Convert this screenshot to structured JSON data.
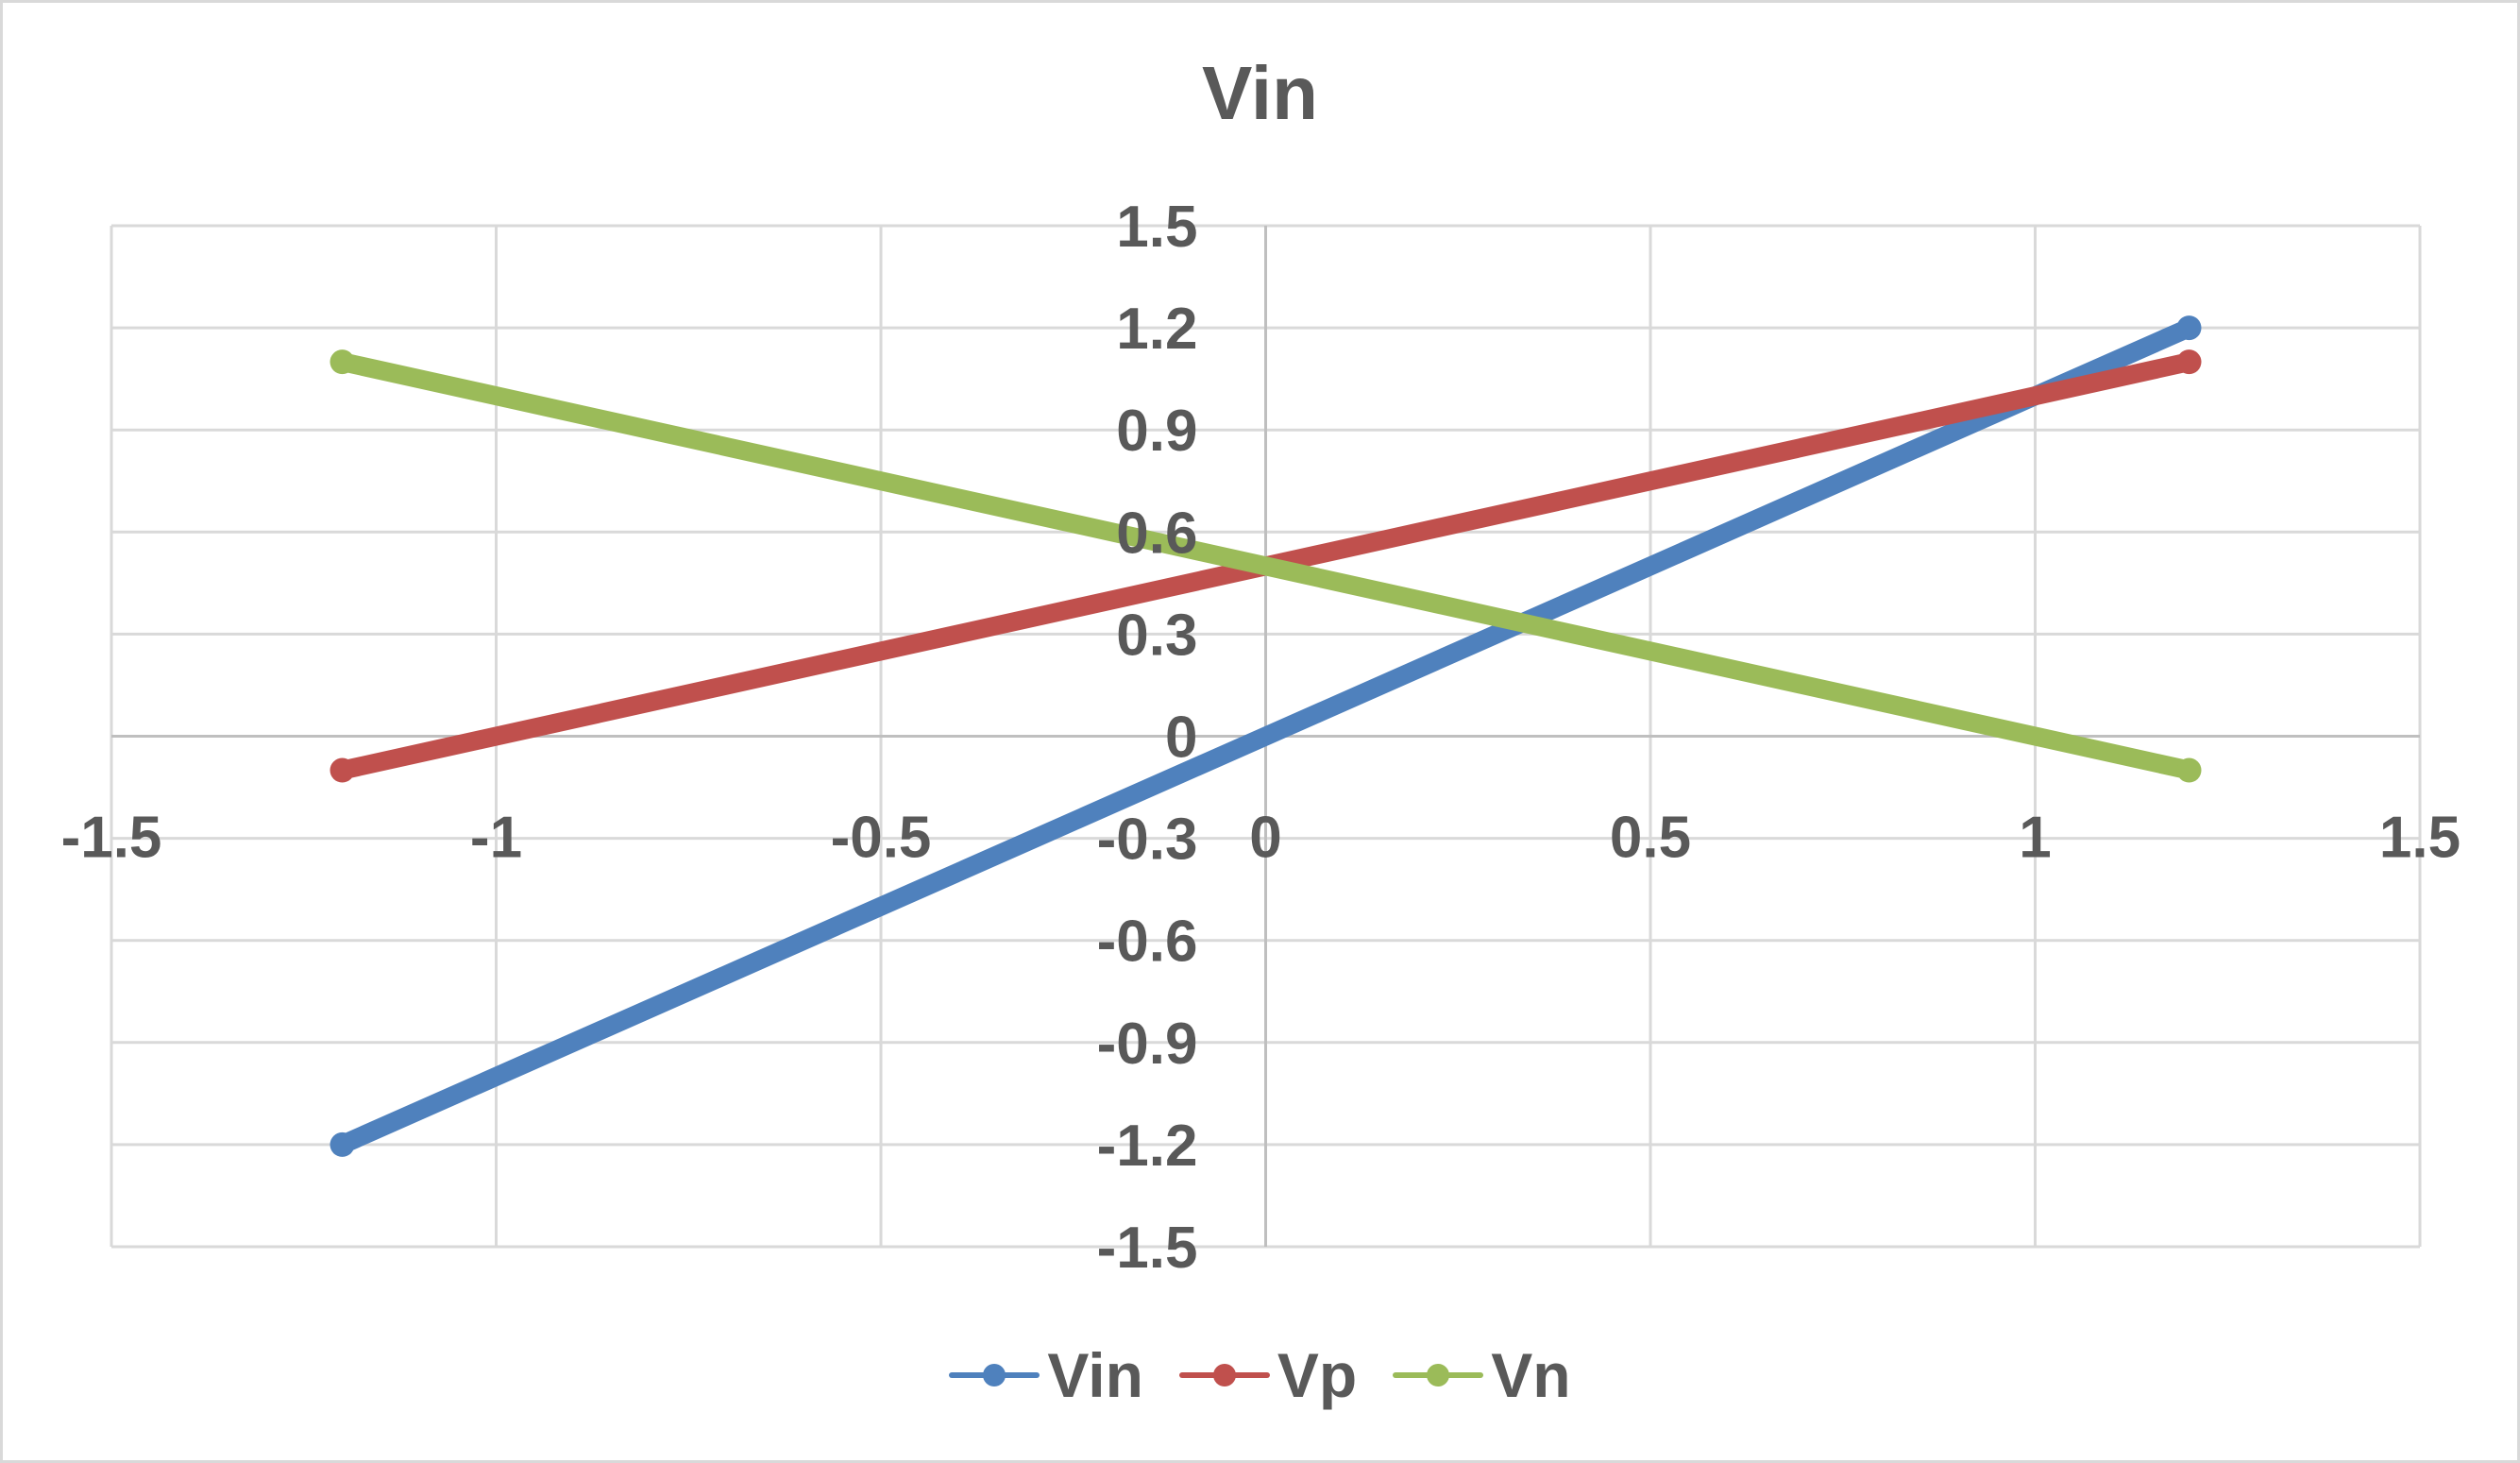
{
  "chart_data": {
    "type": "line",
    "title": "Vin",
    "xlabel": "",
    "ylabel": "",
    "xlim": [
      -1.5,
      1.5
    ],
    "ylim": [
      -1.5,
      1.5
    ],
    "x_ticks": [
      -1.5,
      -1,
      -0.5,
      0,
      0.5,
      1,
      1.5
    ],
    "x_tick_labels": [
      "-1.5",
      "-1",
      "-0.5",
      "0",
      "0.5",
      "1",
      "1.5"
    ],
    "y_ticks": [
      1.5,
      1.2,
      0.9,
      0.6,
      0.3,
      0,
      -0.3,
      -0.6,
      -0.9,
      -1.2,
      -1.5
    ],
    "y_tick_labels": [
      "1.5",
      "1.2",
      "0.9",
      "0.6",
      "0.3",
      "0",
      "-0.3",
      "-0.6",
      "-0.9",
      "-1.2",
      "-1.5"
    ],
    "grid": true,
    "legend_position": "bottom",
    "series": [
      {
        "name": "Vin",
        "color": "#4f81bd",
        "x": [
          -1.2,
          1.2
        ],
        "y": [
          -1.2,
          1.2
        ]
      },
      {
        "name": "Vp",
        "color": "#c0504d",
        "x": [
          -1.2,
          1.2
        ],
        "y": [
          -0.1,
          1.1
        ]
      },
      {
        "name": "Vn",
        "color": "#9bbb59",
        "x": [
          -1.2,
          1.2
        ],
        "y": [
          1.1,
          -0.1
        ]
      }
    ]
  }
}
